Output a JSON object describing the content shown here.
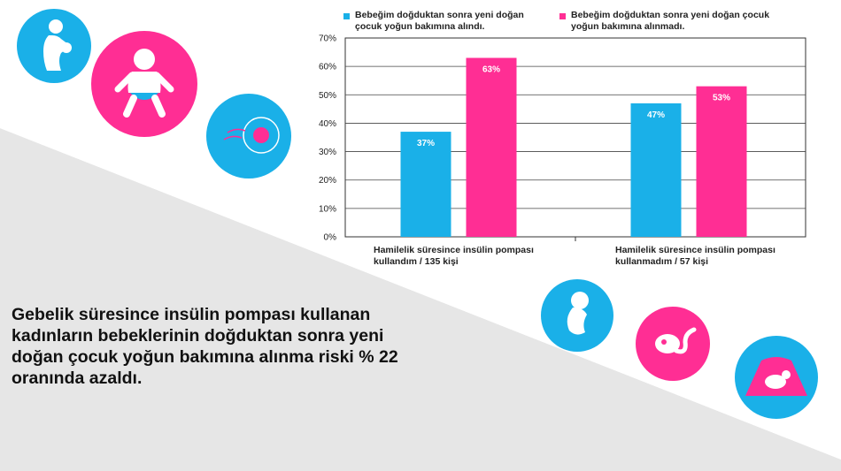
{
  "chart_data": {
    "type": "bar",
    "categories": [
      "Hamilelik süresince insülin pompası kullandım / 135 kişi",
      "Hamilelik süresince insülin pompası kullanmadım / 57 kişi"
    ],
    "category_lines": [
      [
        "Hamilelik süresince insülin pompası",
        "kullandım / 135 kişi"
      ],
      [
        "Hamilelik süresince insülin pompası",
        "kullanmadım / 57 kişi"
      ]
    ],
    "series": [
      {
        "name": "Bebeğim doğduktan sonra yeni doğan çocuk yoğun bakımına alındı.",
        "name_lines": [
          "Bebeğim doğduktan sonra yeni doğan",
          "çocuk yoğun bakımına alındı."
        ],
        "values": [
          37,
          47
        ],
        "labels": [
          "37%",
          "47%"
        ],
        "color": "#1ab0e8"
      },
      {
        "name": "Bebeğim doğduktan sonra yeni doğan çocuk yoğun bakımına alınmadı.",
        "name_lines": [
          "Bebeğim doğduktan sonra yeni doğan çocuk",
          "yoğun bakımına alınmadı."
        ],
        "values": [
          63,
          53
        ],
        "labels": [
          "63%",
          "53%"
        ],
        "color": "#ff2e94"
      }
    ],
    "ylim": [
      0,
      70
    ],
    "yticks": [
      0,
      10,
      20,
      30,
      40,
      50,
      60,
      70
    ],
    "ytick_labels": [
      "0%",
      "10%",
      "20%",
      "30%",
      "40%",
      "50%",
      "60%",
      "70%"
    ],
    "grid": true,
    "legend": "top"
  },
  "callout": {
    "text": "Gebelik süresince insülin pompası kullanan kadınların bebeklerinin doğduktan sonra yeni doğan çocuk yoğun bakımına alınma riski % 22 oranında azaldı."
  },
  "icons": [
    "mother-baby-icon",
    "baby-diaper-icon",
    "egg-sperm-icon",
    "fetus-icon",
    "embryo-icon",
    "ultrasound-icon"
  ],
  "colors": {
    "blue": "#1ab0e8",
    "pink": "#ff2e94",
    "band": "#e6e6e6"
  }
}
